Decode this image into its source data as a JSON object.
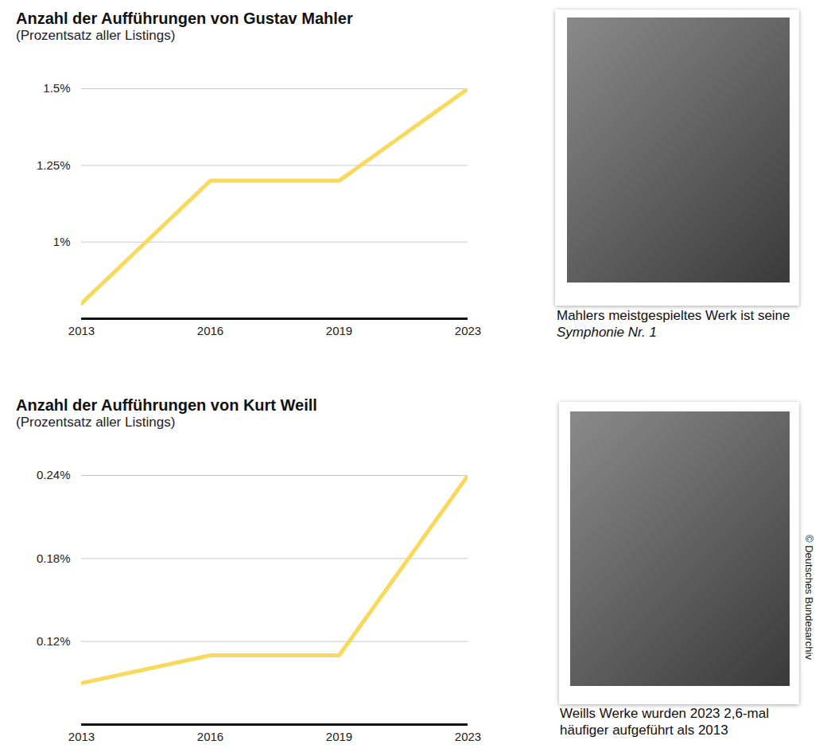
{
  "chart_data": [
    {
      "type": "line",
      "title": "Anzahl der Aufführungen von Gustav Mahler",
      "subtitle": "(Prozentsatz aller Listings)",
      "categories": [
        "2013",
        "2016",
        "2019",
        "2023"
      ],
      "values": [
        0.8,
        1.2,
        1.2,
        1.5
      ],
      "color": "#f9d95b",
      "ylim": [
        0.75,
        1.5
      ],
      "yticks": [
        {
          "value": 1,
          "label": "1%"
        },
        {
          "value": 1.25,
          "label": "1.25%"
        },
        {
          "value": 1.5,
          "label": "1.5%"
        }
      ],
      "grid": true
    },
    {
      "type": "line",
      "title": "Anzahl der Aufführungen von Kurt Weill",
      "subtitle": "(Prozentsatz aller Listings)",
      "categories": [
        "2013",
        "2016",
        "2019",
        "2023"
      ],
      "values": [
        0.09,
        0.11,
        0.11,
        0.24
      ],
      "color": "#f9d95b",
      "ylim": [
        0.06,
        0.24
      ],
      "yticks": [
        {
          "value": 0.12,
          "label": "0.12%"
        },
        {
          "value": 0.18,
          "label": "0.18%"
        },
        {
          "value": 0.24,
          "label": "0.24%"
        }
      ],
      "grid": true
    }
  ],
  "photos": [
    {
      "caption": [
        {
          "text": "Mahlers meistgespieltes Werk ist seine "
        },
        {
          "text": "Symphonie Nr. 1",
          "style": "italic"
        }
      ]
    },
    {
      "caption": [
        {
          "text": "Weills Werke wurden 2023 2,6-mal häufiger aufgeführt als 2013"
        }
      ]
    }
  ],
  "credit": "© Deutsches Bundesarchiv"
}
